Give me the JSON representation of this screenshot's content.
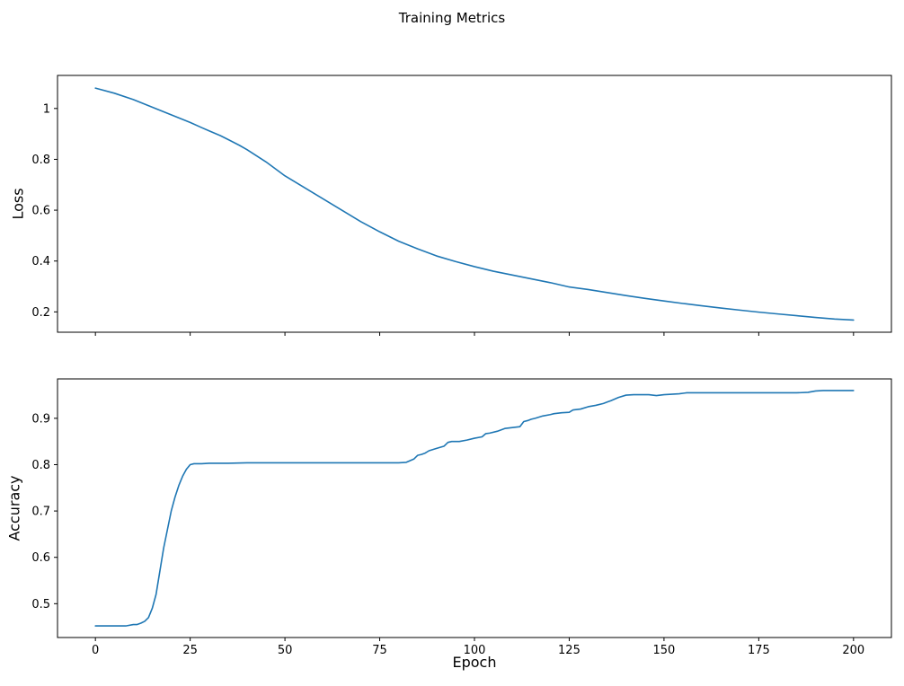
{
  "figure": {
    "title": "Training Metrics"
  },
  "chart_data": [
    {
      "type": "line",
      "title": "",
      "xlabel": "",
      "ylabel": "Loss",
      "xlim": [
        -10,
        210
      ],
      "ylim": [
        0.12,
        1.13
      ],
      "x_ticks": [
        0,
        25,
        50,
        75,
        100,
        125,
        150,
        175,
        200
      ],
      "y_ticks": [
        0.2,
        0.4,
        0.6,
        0.8,
        1.0
      ],
      "grid": false,
      "legend": "none",
      "series": [
        {
          "name": "loss",
          "color": "#1f77b4",
          "x": [
            0,
            5,
            10,
            15,
            20,
            25,
            28,
            30,
            33,
            35,
            38,
            40,
            45,
            50,
            55,
            60,
            65,
            70,
            75,
            80,
            85,
            90,
            95,
            100,
            105,
            110,
            115,
            120,
            125,
            130,
            135,
            140,
            145,
            150,
            155,
            160,
            165,
            170,
            175,
            180,
            185,
            190,
            195,
            200
          ],
          "y": [
            1.08,
            1.06,
            1.035,
            1.005,
            0.975,
            0.945,
            0.925,
            0.912,
            0.893,
            0.878,
            0.855,
            0.838,
            0.79,
            0.735,
            0.69,
            0.645,
            0.6,
            0.555,
            0.515,
            0.478,
            0.448,
            0.42,
            0.398,
            0.378,
            0.36,
            0.345,
            0.33,
            0.315,
            0.298,
            0.288,
            0.276,
            0.264,
            0.253,
            0.243,
            0.233,
            0.224,
            0.215,
            0.207,
            0.199,
            0.192,
            0.185,
            0.178,
            0.172,
            0.168
          ]
        }
      ]
    },
    {
      "type": "line",
      "title": "",
      "xlabel": "Epoch",
      "ylabel": "Accuracy",
      "xlim": [
        -10,
        210
      ],
      "ylim": [
        0.427,
        0.985
      ],
      "x_ticks": [
        0,
        25,
        50,
        75,
        100,
        125,
        150,
        175,
        200
      ],
      "y_ticks": [
        0.5,
        0.6,
        0.7,
        0.8,
        0.9
      ],
      "grid": false,
      "legend": "none",
      "series": [
        {
          "name": "accuracy",
          "color": "#1f77b4",
          "x": [
            0,
            2,
            4,
            6,
            8,
            10,
            11,
            12,
            13,
            14,
            15,
            16,
            17,
            18,
            19,
            20,
            21,
            22,
            23,
            24,
            25,
            26,
            28,
            30,
            35,
            40,
            50,
            60,
            70,
            80,
            82,
            84,
            85,
            86,
            87,
            88,
            90,
            92,
            93,
            94,
            96,
            98,
            100,
            102,
            103,
            104,
            106,
            108,
            110,
            112,
            113,
            114,
            115,
            116,
            118,
            120,
            121,
            123,
            125,
            126,
            128,
            130,
            132,
            134,
            135,
            136,
            138,
            140,
            142,
            144,
            146,
            148,
            150,
            152,
            154,
            156,
            158,
            160,
            165,
            170,
            175,
            180,
            185,
            188,
            190,
            192,
            195,
            200
          ],
          "y": [
            0.452,
            0.452,
            0.452,
            0.452,
            0.452,
            0.455,
            0.455,
            0.458,
            0.462,
            0.47,
            0.49,
            0.52,
            0.57,
            0.62,
            0.66,
            0.7,
            0.73,
            0.755,
            0.775,
            0.79,
            0.8,
            0.802,
            0.802,
            0.803,
            0.803,
            0.804,
            0.804,
            0.804,
            0.804,
            0.804,
            0.805,
            0.812,
            0.82,
            0.822,
            0.825,
            0.83,
            0.835,
            0.84,
            0.848,
            0.85,
            0.85,
            0.853,
            0.857,
            0.86,
            0.867,
            0.868,
            0.872,
            0.878,
            0.88,
            0.882,
            0.893,
            0.895,
            0.898,
            0.9,
            0.905,
            0.908,
            0.91,
            0.912,
            0.913,
            0.918,
            0.92,
            0.925,
            0.928,
            0.932,
            0.935,
            0.938,
            0.945,
            0.95,
            0.951,
            0.951,
            0.951,
            0.949,
            0.951,
            0.952,
            0.953,
            0.955,
            0.955,
            0.955,
            0.955,
            0.955,
            0.955,
            0.955,
            0.955,
            0.956,
            0.959,
            0.96,
            0.96,
            0.96
          ]
        }
      ]
    }
  ]
}
